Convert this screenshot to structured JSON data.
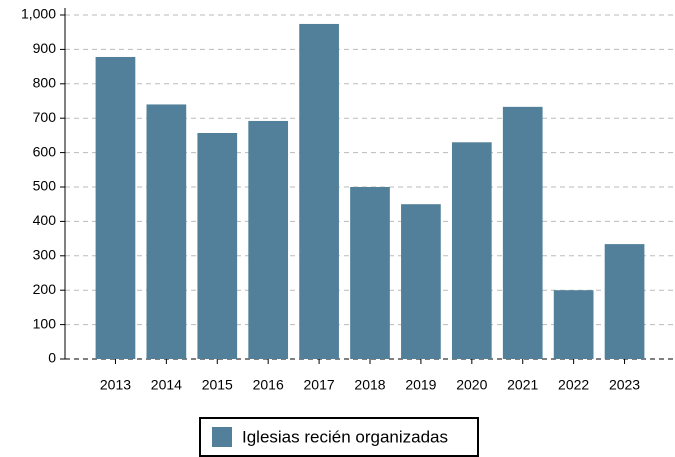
{
  "chart_data": {
    "type": "bar",
    "categories": [
      "2013",
      "2014",
      "2015",
      "2016",
      "2017",
      "2018",
      "2019",
      "2020",
      "2021",
      "2022",
      "2023"
    ],
    "series": [
      {
        "name": "Iglesias recién organizadas",
        "color": "#52809a",
        "values": [
          878,
          740,
          657,
          692,
          974,
          500,
          450,
          630,
          733,
          200,
          334
        ]
      }
    ],
    "ylim": [
      0,
      1000
    ],
    "yticks": [
      0,
      100,
      200,
      300,
      400,
      500,
      600,
      700,
      800,
      900,
      {
        "value": 1000,
        "label": "1,000"
      }
    ],
    "grid": true,
    "legend": "bottom"
  }
}
